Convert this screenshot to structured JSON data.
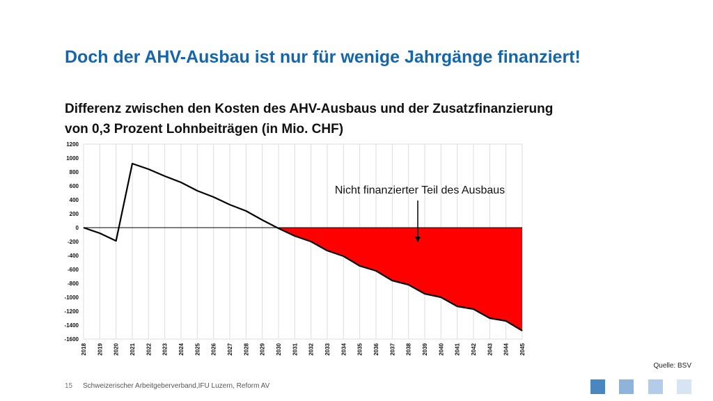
{
  "slide": {
    "title": "Doch der AHV-Ausbau ist nur für wenige Jahrgänge finanziert!",
    "subtitle_line1": "Differenz zwischen den Kosten des AHV-Ausbaus und der Zusatzfinanzierung",
    "subtitle_line2": "von 0,3 Prozent Lohnbeiträgen (in Mio. CHF)",
    "source": "Quelle: BSV",
    "page_number": "15",
    "footer": "Schweizerischer Arbeitgeberverband,IFU Luzern, Reform AV"
  },
  "colors": {
    "title": "#1565a8",
    "fill": "#ff0000",
    "line": "#000000",
    "deco": [
      "#4a86c0",
      "#8fb3d9",
      "#b3cde8",
      "#d6e4f3"
    ]
  },
  "chart_data": {
    "type": "area",
    "x": [
      "2018",
      "2019",
      "2020",
      "2021",
      "2022",
      "2023",
      "2024",
      "2025",
      "2026",
      "2027",
      "2028",
      "2029",
      "2030",
      "2031",
      "2032",
      "2033",
      "2034",
      "2035",
      "2036",
      "2037",
      "2038",
      "2039",
      "2040",
      "2041",
      "2042",
      "2043",
      "2044",
      "2045"
    ],
    "values": [
      0,
      -80,
      -190,
      920,
      840,
      740,
      650,
      530,
      440,
      330,
      240,
      110,
      -10,
      -120,
      -200,
      -330,
      -410,
      -550,
      -620,
      -760,
      -820,
      -950,
      -1000,
      -1130,
      -1170,
      -1300,
      -1340,
      -1480
    ],
    "fill_below_zero": true,
    "annotation": "Nicht finanzierter Teil des Ausbaus",
    "ylim": [
      -1600,
      1200
    ],
    "yticks": [
      1200,
      1000,
      800,
      600,
      400,
      200,
      0,
      -200,
      -400,
      -600,
      -800,
      -1000,
      -1200,
      -1400,
      -1600
    ],
    "grid": "vertical"
  }
}
